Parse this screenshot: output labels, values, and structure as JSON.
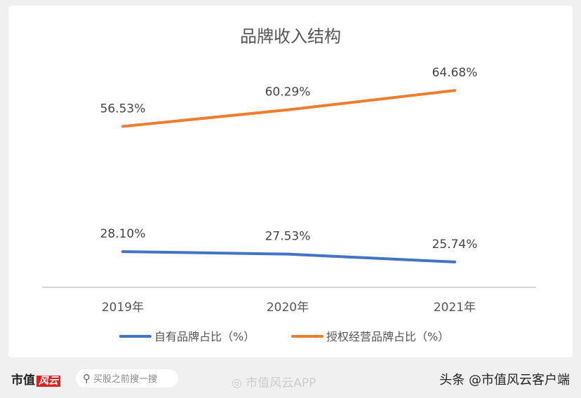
{
  "chart_data": {
    "type": "line",
    "title": "品牌收入结构",
    "categories": [
      "2019年",
      "2020年",
      "2021年"
    ],
    "series": [
      {
        "name": "自有品牌占比（%）",
        "color": "#4472c4",
        "values": [
          28.1,
          27.53,
          25.74
        ],
        "labels": [
          "28.10%",
          "27.53%",
          "25.74%"
        ]
      },
      {
        "name": "授权经营品牌占比（%）",
        "color": "#ed7d31",
        "values": [
          56.53,
          60.29,
          64.68
        ],
        "labels": [
          "56.53%",
          "60.29%",
          "64.68%"
        ]
      }
    ],
    "ylim": [
      20,
      76
    ],
    "grid": false,
    "legend": "bottom"
  },
  "footer": {
    "logo_text": "市值",
    "logo_badge": "风云",
    "search_placeholder": "买股之前搜一搜",
    "watermark": "市值风云APP",
    "credit": "头条 @市值风云客户端"
  }
}
